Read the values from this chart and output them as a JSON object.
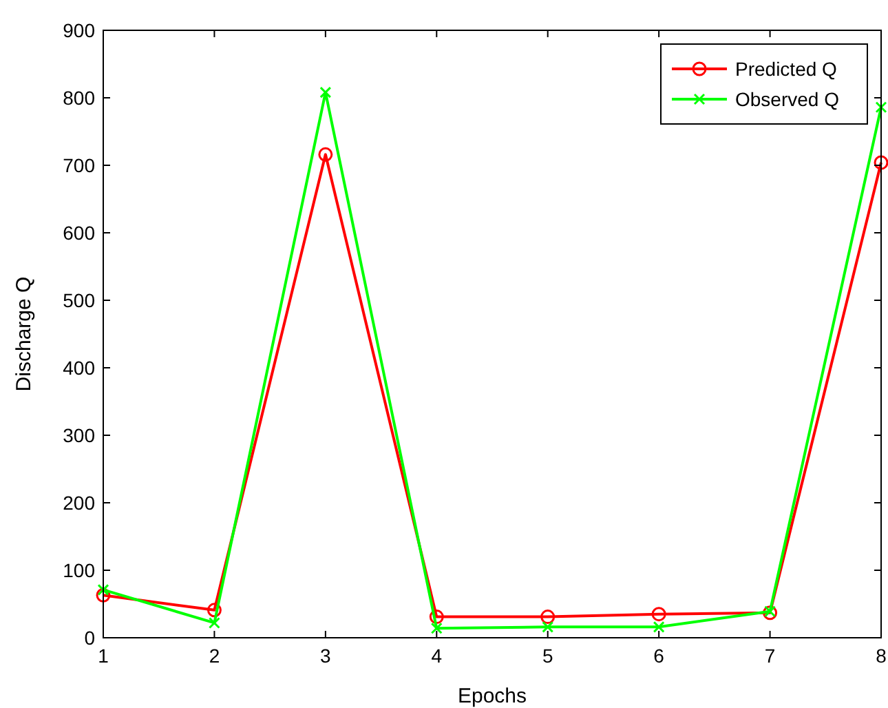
{
  "chart_data": {
    "type": "line",
    "xlabel": "Epochs",
    "ylabel": "Discharge Q",
    "x": [
      1,
      2,
      3,
      4,
      5,
      6,
      7,
      8
    ],
    "xlim": [
      1,
      8
    ],
    "xticks": [
      1,
      2,
      3,
      4,
      5,
      6,
      7,
      8
    ],
    "ylim": [
      0,
      900
    ],
    "yticks": [
      0,
      100,
      200,
      300,
      400,
      500,
      600,
      700,
      800,
      900
    ],
    "legend": "top right",
    "grid": false,
    "series": [
      {
        "name": "Predicted Q",
        "color": "#ff0000",
        "marker": "circle",
        "values": [
          63,
          41,
          716,
          31,
          31,
          35,
          37,
          704
        ]
      },
      {
        "name": "Observed Q",
        "color": "#00ff00",
        "marker": "cross",
        "values": [
          71,
          22,
          808,
          14,
          16,
          16,
          39,
          786
        ]
      }
    ]
  }
}
